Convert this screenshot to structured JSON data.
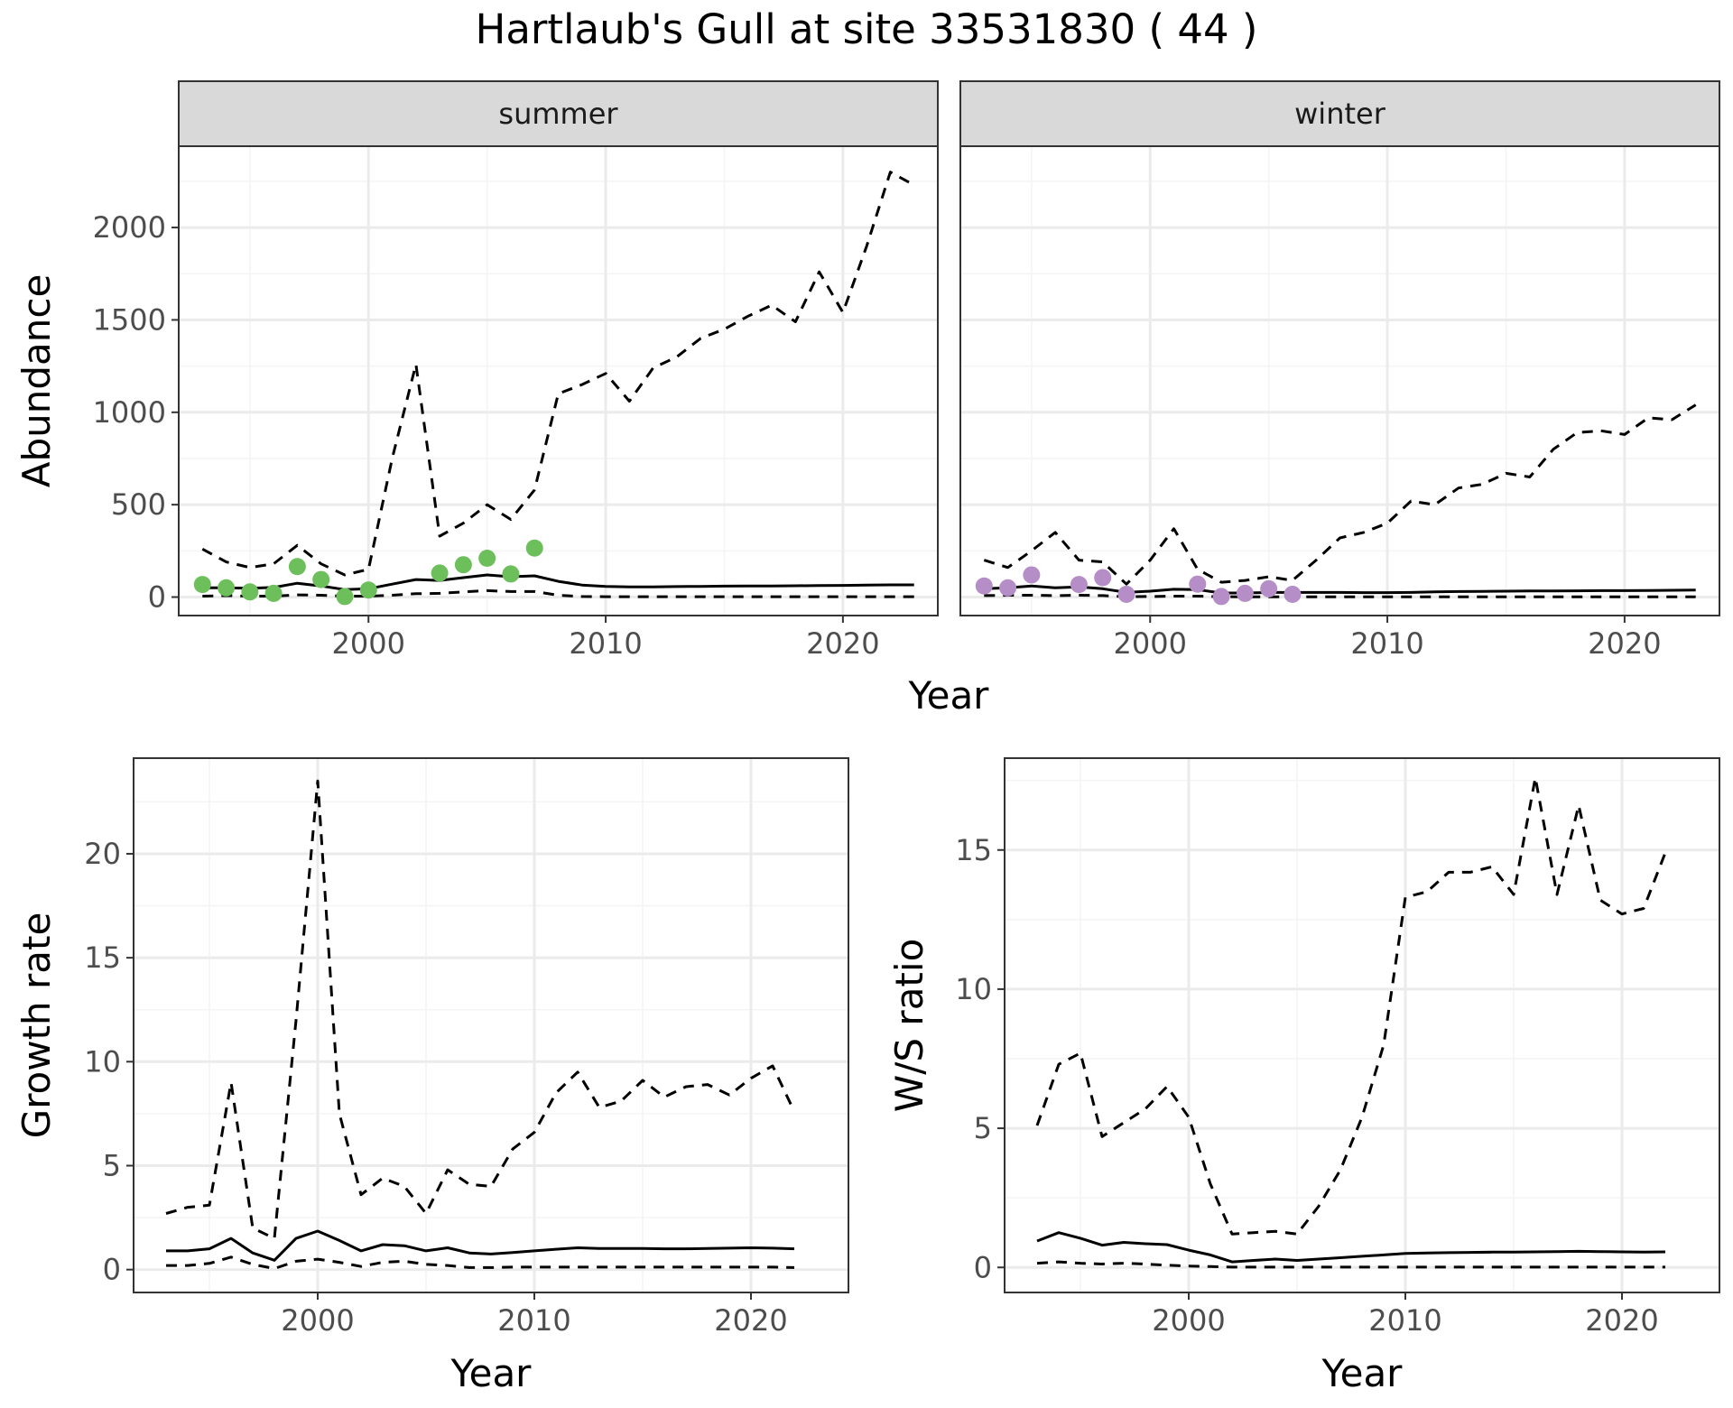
{
  "title": "Hartlaub's Gull at site 33531830 ( 44 )",
  "colors": {
    "summer_points": "#6dbf5c",
    "winter_points": "#b58ec8",
    "line": "#000000",
    "strip_fill": "#d9d9d9",
    "grid_major": "#ebebeb",
    "grid_minor": "#f4f4f4",
    "panel_border": "#333333"
  },
  "chart_data": [
    {
      "type": "line",
      "facet": "summer",
      "xlabel": "Year",
      "ylabel": "Abundance",
      "xlim": [
        1992,
        2024
      ],
      "ylim": [
        -100,
        2440
      ],
      "xticks": [
        2000,
        2010,
        2020
      ],
      "yticks": [
        0,
        500,
        1000,
        1500,
        2000
      ],
      "grid": true,
      "points": {
        "x": [
          1993,
          1994,
          1995,
          1996,
          1997,
          1998,
          1999,
          2000,
          2003,
          2004,
          2005,
          2006,
          2007
        ],
        "y": [
          68,
          50,
          28,
          20,
          165,
          95,
          3,
          38,
          130,
          175,
          210,
          125,
          265
        ]
      },
      "series": [
        {
          "style": "solid",
          "x": [
            1993,
            1994,
            1995,
            1996,
            1997,
            1998,
            1999,
            2000,
            2001,
            2002,
            2003,
            2004,
            2005,
            2006,
            2007,
            2008,
            2009,
            2010,
            2011,
            2012,
            2013,
            2014,
            2015,
            2016,
            2017,
            2018,
            2019,
            2020,
            2021,
            2022,
            2023
          ],
          "y": [
            50,
            50,
            48,
            52,
            75,
            60,
            40,
            45,
            70,
            95,
            90,
            105,
            120,
            110,
            115,
            85,
            65,
            58,
            55,
            55,
            57,
            58,
            59,
            60,
            60,
            61,
            62,
            63,
            65,
            66,
            66
          ]
        },
        {
          "style": "dashed",
          "x": [
            1993,
            1994,
            1995,
            1996,
            1997,
            1998,
            1999,
            2000,
            2001,
            2002,
            2003,
            2004,
            2005,
            2006,
            2007,
            2008,
            2009,
            2010,
            2011,
            2012,
            2013,
            2014,
            2015,
            2016,
            2017,
            2018,
            2019,
            2020,
            2021,
            2022,
            2023
          ],
          "y": [
            260,
            190,
            160,
            180,
            280,
            180,
            120,
            150,
            750,
            1260,
            330,
            400,
            500,
            420,
            580,
            1100,
            1150,
            1210,
            1060,
            1240,
            1300,
            1400,
            1450,
            1520,
            1580,
            1490,
            1760,
            1540,
            1900,
            2300,
            2230
          ]
        },
        {
          "style": "dashed",
          "x": [
            1993,
            1994,
            1995,
            1996,
            1997,
            1998,
            1999,
            2000,
            2001,
            2002,
            2003,
            2004,
            2005,
            2006,
            2007,
            2008,
            2009,
            2010,
            2011,
            2012,
            2013,
            2014,
            2015,
            2016,
            2017,
            2018,
            2019,
            2020,
            2021,
            2022,
            2023
          ],
          "y": [
            5,
            8,
            5,
            5,
            12,
            10,
            5,
            5,
            10,
            18,
            20,
            28,
            35,
            30,
            30,
            10,
            3,
            2,
            2,
            2,
            2,
            2,
            2,
            2,
            2,
            2,
            2,
            2,
            2,
            2,
            2
          ]
        }
      ]
    },
    {
      "type": "line",
      "facet": "winter",
      "xlabel": "Year",
      "ylabel": "Abundance",
      "xlim": [
        1992,
        2024
      ],
      "ylim": [
        -100,
        2440
      ],
      "xticks": [
        2000,
        2010,
        2020
      ],
      "yticks": [
        0,
        500,
        1000,
        1500,
        2000
      ],
      "grid": true,
      "points": {
        "x": [
          1993,
          1994,
          1995,
          1997,
          1998,
          1999,
          2002,
          2003,
          2004,
          2005,
          2006
        ],
        "y": [
          60,
          50,
          120,
          68,
          105,
          15,
          70,
          3,
          20,
          45,
          15
        ]
      },
      "series": [
        {
          "style": "solid",
          "x": [
            1993,
            1994,
            1995,
            1996,
            1997,
            1998,
            1999,
            2000,
            2001,
            2002,
            2003,
            2004,
            2005,
            2006,
            2007,
            2008,
            2009,
            2010,
            2011,
            2012,
            2013,
            2014,
            2015,
            2016,
            2017,
            2018,
            2019,
            2020,
            2021,
            2022,
            2023
          ],
          "y": [
            45,
            50,
            60,
            50,
            55,
            45,
            25,
            32,
            42,
            40,
            22,
            22,
            25,
            25,
            25,
            25,
            24,
            24,
            25,
            28,
            30,
            31,
            32,
            33,
            33,
            34,
            35,
            35,
            36,
            37,
            38
          ]
        },
        {
          "style": "dashed",
          "x": [
            1993,
            1994,
            1995,
            1996,
            1997,
            1998,
            1999,
            2000,
            2001,
            2002,
            2003,
            2004,
            2005,
            2006,
            2007,
            2008,
            2009,
            2010,
            2011,
            2012,
            2013,
            2014,
            2015,
            2016,
            2017,
            2018,
            2019,
            2020,
            2021,
            2022,
            2023
          ],
          "y": [
            200,
            160,
            250,
            350,
            200,
            190,
            70,
            200,
            370,
            150,
            80,
            90,
            110,
            90,
            200,
            320,
            350,
            400,
            520,
            500,
            590,
            610,
            670,
            650,
            800,
            890,
            900,
            880,
            970,
            960,
            1040
          ]
        },
        {
          "style": "dashed",
          "x": [
            1993,
            1994,
            1995,
            1996,
            1997,
            1998,
            1999,
            2000,
            2001,
            2002,
            2003,
            2004,
            2005,
            2006,
            2007,
            2008,
            2009,
            2010,
            2011,
            2012,
            2013,
            2014,
            2015,
            2016,
            2017,
            2018,
            2019,
            2020,
            2021,
            2022,
            2023
          ],
          "y": [
            8,
            10,
            10,
            8,
            10,
            8,
            2,
            3,
            5,
            5,
            2,
            1,
            1,
            1,
            1,
            1,
            1,
            1,
            1,
            1,
            1,
            1,
            1,
            1,
            1,
            1,
            1,
            1,
            1,
            1,
            1
          ]
        }
      ]
    },
    {
      "type": "line",
      "xlabel": "Year",
      "ylabel": "Growth rate",
      "xlim": [
        1991.5,
        2024.5
      ],
      "ylim": [
        -1.1,
        24.6
      ],
      "xticks": [
        2000,
        2010,
        2020
      ],
      "yticks": [
        0,
        5,
        10,
        15,
        20
      ],
      "grid": true,
      "series": [
        {
          "style": "solid",
          "x": [
            1993,
            1994,
            1995,
            1996,
            1997,
            1998,
            1999,
            2000,
            2001,
            2002,
            2003,
            2004,
            2005,
            2006,
            2007,
            2008,
            2009,
            2010,
            2011,
            2012,
            2013,
            2014,
            2015,
            2016,
            2017,
            2018,
            2019,
            2020,
            2021,
            2022
          ],
          "y": [
            0.9,
            0.9,
            1.0,
            1.5,
            0.8,
            0.45,
            1.5,
            1.85,
            1.4,
            0.9,
            1.2,
            1.15,
            0.9,
            1.05,
            0.8,
            0.75,
            0.82,
            0.9,
            0.98,
            1.05,
            1.02,
            1.02,
            1.02,
            1.0,
            1.0,
            1.02,
            1.03,
            1.05,
            1.03,
            1.0
          ]
        },
        {
          "style": "dashed",
          "x": [
            1993,
            1994,
            1995,
            1996,
            1997,
            1998,
            1999,
            2000,
            2001,
            2002,
            2003,
            2004,
            2005,
            2006,
            2007,
            2008,
            2009,
            2010,
            2011,
            2012,
            2013,
            2014,
            2015,
            2016,
            2017,
            2018,
            2019,
            2020,
            2021,
            2022
          ],
          "y": [
            2.7,
            3.0,
            3.1,
            9.0,
            2.0,
            1.5,
            12.0,
            23.5,
            7.5,
            3.6,
            4.4,
            4.0,
            2.7,
            4.8,
            4.1,
            4.0,
            5.8,
            6.6,
            8.5,
            9.5,
            7.8,
            8.1,
            9.1,
            8.3,
            8.8,
            8.9,
            8.4,
            9.2,
            9.8,
            7.6
          ]
        },
        {
          "style": "dashed",
          "x": [
            1993,
            1994,
            1995,
            1996,
            1997,
            1998,
            1999,
            2000,
            2001,
            2002,
            2003,
            2004,
            2005,
            2006,
            2007,
            2008,
            2009,
            2010,
            2011,
            2012,
            2013,
            2014,
            2015,
            2016,
            2017,
            2018,
            2019,
            2020,
            2021,
            2022
          ],
          "y": [
            0.2,
            0.2,
            0.3,
            0.6,
            0.25,
            0.05,
            0.4,
            0.5,
            0.35,
            0.15,
            0.35,
            0.4,
            0.25,
            0.2,
            0.1,
            0.1,
            0.12,
            0.12,
            0.12,
            0.12,
            0.12,
            0.12,
            0.12,
            0.12,
            0.12,
            0.12,
            0.12,
            0.12,
            0.12,
            0.1
          ]
        }
      ]
    },
    {
      "type": "line",
      "xlabel": "Year",
      "ylabel": "W/S ratio",
      "xlim": [
        1991.5,
        2024.5
      ],
      "ylim": [
        -0.9,
        18.3
      ],
      "xticks": [
        2000,
        2010,
        2020
      ],
      "yticks": [
        0,
        5,
        10,
        15
      ],
      "grid": true,
      "series": [
        {
          "style": "solid",
          "x": [
            1993,
            1994,
            1995,
            1996,
            1997,
            1998,
            1999,
            2000,
            2001,
            2002,
            2003,
            2004,
            2005,
            2006,
            2007,
            2008,
            2009,
            2010,
            2011,
            2012,
            2013,
            2014,
            2015,
            2016,
            2017,
            2018,
            2019,
            2020,
            2021,
            2022
          ],
          "y": [
            0.95,
            1.25,
            1.05,
            0.8,
            0.9,
            0.85,
            0.82,
            0.62,
            0.45,
            0.2,
            0.25,
            0.3,
            0.25,
            0.3,
            0.35,
            0.4,
            0.45,
            0.5,
            0.52,
            0.53,
            0.54,
            0.55,
            0.55,
            0.56,
            0.57,
            0.58,
            0.57,
            0.56,
            0.55,
            0.56
          ]
        },
        {
          "style": "dashed",
          "x": [
            1993,
            1994,
            1995,
            1996,
            1997,
            1998,
            1999,
            2000,
            2001,
            2002,
            2003,
            2004,
            2005,
            2006,
            2007,
            2008,
            2009,
            2010,
            2011,
            2012,
            2013,
            2014,
            2015,
            2016,
            2017,
            2018,
            2019,
            2020,
            2021,
            2022
          ],
          "y": [
            5.1,
            7.3,
            7.7,
            4.7,
            5.2,
            5.7,
            6.5,
            5.4,
            3.0,
            1.2,
            1.25,
            1.3,
            1.2,
            2.2,
            3.5,
            5.4,
            8.0,
            13.3,
            13.5,
            14.2,
            14.2,
            14.4,
            13.4,
            17.6,
            13.4,
            16.6,
            13.2,
            12.7,
            12.9,
            14.9
          ]
        },
        {
          "style": "dashed",
          "x": [
            1993,
            1994,
            1995,
            1996,
            1997,
            1998,
            1999,
            2000,
            2001,
            2002,
            2003,
            2004,
            2005,
            2006,
            2007,
            2008,
            2009,
            2010,
            2011,
            2012,
            2013,
            2014,
            2015,
            2016,
            2017,
            2018,
            2019,
            2020,
            2021,
            2022
          ],
          "y": [
            0.15,
            0.2,
            0.15,
            0.12,
            0.15,
            0.12,
            0.08,
            0.05,
            0.03,
            0.01,
            0.01,
            0.01,
            0.01,
            0.01,
            0.01,
            0.01,
            0.01,
            0.01,
            0.01,
            0.01,
            0.01,
            0.01,
            0.01,
            0.01,
            0.01,
            0.01,
            0.01,
            0.01,
            0.01,
            0.01
          ]
        }
      ]
    }
  ]
}
